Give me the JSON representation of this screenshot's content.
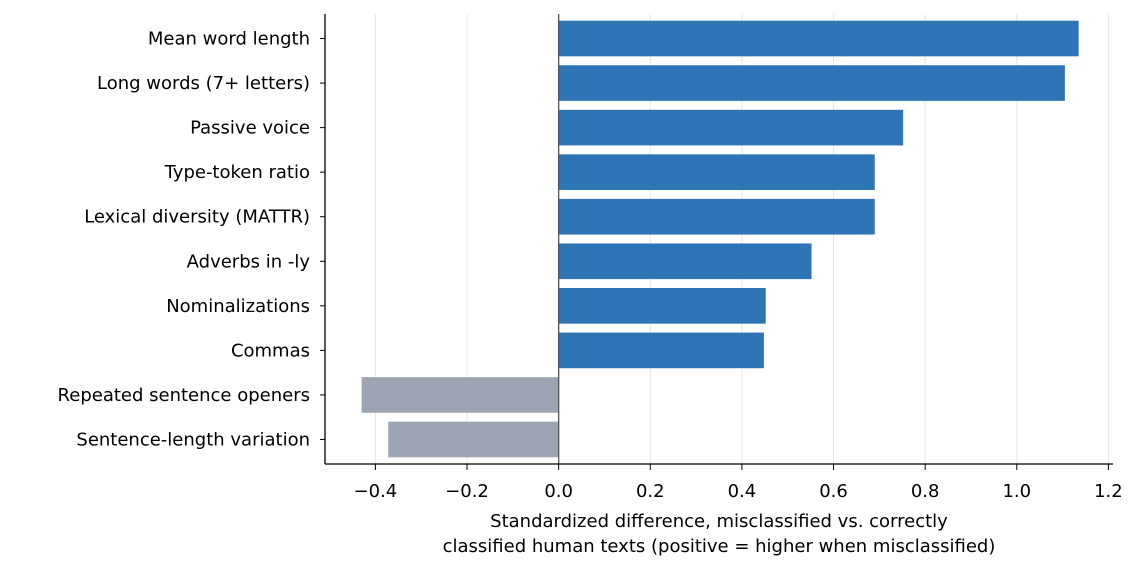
{
  "chart_data": {
    "type": "bar",
    "orientation": "horizontal",
    "categories": [
      "Mean word length",
      "Long words (7+ letters)",
      "Passive voice",
      "Type-token ratio",
      "Lexical diversity (MATTR)",
      "Adverbs in -ly",
      "Nominalizations",
      "Commas",
      "Repeated sentence openers",
      "Sentence-length variation"
    ],
    "values": [
      1.135,
      1.105,
      0.752,
      0.69,
      0.69,
      0.552,
      0.452,
      0.448,
      -0.43,
      -0.372
    ],
    "xlabel_lines": [
      "Standardized difference, misclassified vs. correctly",
      "classified human texts (positive = higher when misclassified)"
    ],
    "xlim": [
      -0.51,
      1.21
    ],
    "xticks": [
      -0.4,
      -0.2,
      0.0,
      0.2,
      0.4,
      0.6,
      0.8,
      1.0,
      1.2
    ],
    "xtick_labels": [
      "−0.4",
      "−0.2",
      "0.0",
      "0.2",
      "0.4",
      "0.6",
      "0.8",
      "1.0",
      "1.2"
    ],
    "grid": "vertical",
    "colors": {
      "positive": "#2e75b6",
      "negative": "#9ca5b1",
      "grid": "#e6e6e6",
      "axis": "#000000",
      "zero_line": "#555555"
    }
  }
}
